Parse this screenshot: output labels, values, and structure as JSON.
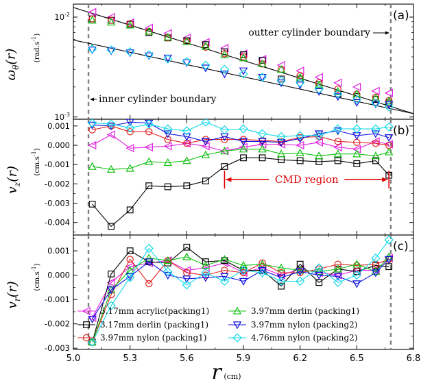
{
  "chart_data": {
    "type": "scatter",
    "xlim": [
      5.0,
      6.8
    ],
    "xticks": [
      "5.0",
      "5.3",
      "5.6",
      "5.9",
      "6.2",
      "6.5",
      "6.8"
    ],
    "x_label": "r",
    "x_unit": "(cm)",
    "x": [
      5.1,
      5.2,
      5.3,
      5.4,
      5.5,
      5.6,
      5.7,
      5.8,
      5.9,
      6.0,
      6.1,
      6.2,
      6.3,
      6.4,
      6.5,
      6.6,
      6.67
    ],
    "boundaries": {
      "inner": 5.08,
      "outer": 6.68,
      "inner_label": "inner cylinder boundary",
      "outer_label": "outter cylinder boundary"
    },
    "series_styles": [
      {
        "name": "3.17mm acrylic(packing1)",
        "color": "#e020e0",
        "marker": "triangle-left"
      },
      {
        "name": "3.17mm derlin (packing1)",
        "color": "#000000",
        "marker": "square"
      },
      {
        "name": "3.97mm nylon (packing1)",
        "color": "#e02020",
        "marker": "circle"
      },
      {
        "name": "3.97mm derlin (packing1)",
        "color": "#10c010",
        "marker": "triangle-up"
      },
      {
        "name": "3.97mm nylon (packing2)",
        "color": "#1010e0",
        "marker": "triangle-down"
      },
      {
        "name": "4.76mm nylon (packing2)",
        "color": "#10d8e8",
        "marker": "diamond"
      }
    ],
    "legend_rows": [
      [
        {
          "name": "3.17mm acrylic(packing1)",
          "color": "#e020e0",
          "marker": "triangle-left"
        },
        {
          "name": "3.97mm derlin (packing1)",
          "color": "#10c010",
          "marker": "triangle-up"
        }
      ],
      [
        {
          "name": "3.17mm derlin (packing1)",
          "color": "#000000",
          "marker": "square"
        },
        {
          "name": "3.97mm nylon (packing2)",
          "color": "#1010e0",
          "marker": "triangle-down"
        }
      ],
      [
        {
          "name": "3.97mm nylon (packing1)",
          "color": "#e02020",
          "marker": "circle"
        },
        {
          "name": "4.76mm nylon (packing2)",
          "color": "#10d8e8",
          "marker": "diamond"
        }
      ]
    ],
    "panels": [
      {
        "id": "a",
        "label": "(a)",
        "ylabel": "ω_θ(r)",
        "yunit": "(rad.s-1)",
        "scale": "log",
        "ylim": [
          0.00095,
          0.0135
        ],
        "yticks": [
          {
            "v": 0.01,
            "t": "10-2"
          },
          {
            "v": 0.001,
            "t": "10-3"
          }
        ],
        "connect": false,
        "fit_lines": [
          {
            "x": [
              5.0,
              6.8
            ],
            "y": [
              0.0125,
              0.00108
            ]
          },
          {
            "x": [
              5.0,
              6.8
            ],
            "y": [
              0.0059,
              0.00108
            ]
          }
        ],
        "series": [
          {
            "values": [
              0.0112,
              0.01,
              0.0088,
              0.0078,
              0.0069,
              0.0062,
              0.0056,
              0.0049,
              0.0043,
              0.0038,
              0.0033,
              0.0029,
              0.0025,
              0.0022,
              0.002,
              0.00182,
              0.00174
            ]
          },
          {
            "values": [
              0.0096,
              0.0093,
              0.0085,
              0.007,
              0.0062,
              0.0058,
              0.0053,
              0.0045,
              0.0042,
              0.0037,
              0.0024,
              0.0024,
              0.0021,
              0.0017,
              0.0016,
              0.0015,
              0.00138
            ]
          },
          {
            "values": [
              0.0096,
              0.0093,
              0.0086,
              0.0072,
              0.0062,
              0.0057,
              0.005,
              0.0043,
              0.004,
              0.0034,
              0.003,
              0.0026,
              0.0022,
              0.0019,
              0.0017,
              0.00158,
              0.00146
            ]
          },
          {
            "values": [
              0.0093,
              0.0089,
              0.0083,
              0.0072,
              0.0063,
              0.0057,
              0.0051,
              0.0042,
              0.0039,
              0.0034,
              0.003,
              0.0025,
              0.0021,
              0.0018,
              0.0017,
              0.00155,
              0.00144
            ]
          },
          {
            "values": [
              0.0047,
              0.0046,
              0.0044,
              0.0041,
              0.0039,
              0.0035,
              0.0031,
              0.0027,
              0.0029,
              0.0025,
              0.0022,
              0.0021,
              0.0018,
              0.0016,
              0.0014,
              0.00135,
              0.00133
            ]
          },
          {
            "values": [
              0.0048,
              0.0047,
              0.0045,
              0.0042,
              0.0038,
              0.0036,
              0.0033,
              0.003,
              0.0027,
              0.0025,
              0.0023,
              0.0022,
              0.0019,
              0.0017,
              0.0015,
              0.00138,
              0.00126
            ]
          }
        ]
      },
      {
        "id": "b",
        "label": "(b)",
        "ylabel": "v_z(r)",
        "yunit": "(cm.s-1)",
        "scale": "linear",
        "ylim": [
          -0.00465,
          0.00135
        ],
        "yticks": [
          {
            "v": 0.001,
            "t": "0.001"
          },
          {
            "v": 0.0,
            "t": "0.000"
          },
          {
            "v": -0.001,
            "t": "-0.001"
          },
          {
            "v": -0.002,
            "t": "-0.002"
          },
          {
            "v": -0.003,
            "t": "-0.003"
          },
          {
            "v": -0.004,
            "t": "-0.004"
          }
        ],
        "connect": true,
        "region": {
          "label": "CMD region",
          "from": 5.8,
          "to": 6.67,
          "y": -0.00178
        },
        "series": [
          {
            "values": [
              0.0,
              0.00055,
              -0.00015,
              -0.0001,
              -5e-05,
              0.0001,
              -5e-05,
              -0.0003,
              -0.0001,
              5e-05,
              5e-05,
              0.0,
              0.00015,
              -0.0001,
              -0.0002,
              0.0002,
              5e-05
            ]
          },
          {
            "values": [
              -0.00305,
              -0.0042,
              -0.00335,
              -0.0021,
              -0.00215,
              -0.0021,
              -0.00185,
              -0.0011,
              -0.00065,
              -0.00065,
              -0.00075,
              -0.0008,
              -0.00085,
              -0.0008,
              -0.00095,
              -0.0008,
              -0.00155
            ]
          },
          {
            "values": [
              0.0008,
              0.001,
              0.0007,
              0.0007,
              0.0003,
              0.0001,
              0.0003,
              0.0003,
              0.0003,
              0.00025,
              0.0002,
              0.0004,
              0.00045,
              0.0002,
              0.00015,
              0.0001,
              0.0
            ]
          },
          {
            "values": [
              -0.0011,
              -0.00125,
              -0.0012,
              -0.00085,
              -0.0009,
              -0.0008,
              -0.0005,
              -0.0003,
              -0.0002,
              -0.0002,
              -0.00045,
              -0.0004,
              -0.00055,
              -0.00045,
              -0.00045,
              -0.00055,
              -0.00035
            ]
          },
          {
            "values": [
              0.00105,
              0.001,
              0.0012,
              0.00115,
              0.0006,
              0.00045,
              0.0002,
              0.00045,
              0.0002,
              0.0002,
              0.00015,
              0.00035,
              0.0006,
              0.00075,
              0.0005,
              0.0006,
              0.0004
            ]
          },
          {
            "values": [
              0.00115,
              0.0011,
              0.0009,
              0.0011,
              0.00085,
              0.00075,
              0.0012,
              0.0008,
              0.00085,
              0.0006,
              0.00045,
              0.0005,
              0.0005,
              0.00085,
              0.00085,
              0.00085,
              0.00095
            ]
          }
        ]
      },
      {
        "id": "c",
        "label": "(c)",
        "ylabel": "v_r(r)",
        "yunit": "(cm.s-1)",
        "scale": "linear",
        "ylim": [
          -0.00305,
          0.00165
        ],
        "yticks": [
          {
            "v": 0.001,
            "t": "0.001"
          },
          {
            "v": 0.0,
            "t": "0.000"
          },
          {
            "v": -0.001,
            "t": "-0.001"
          },
          {
            "v": -0.002,
            "t": "-0.002"
          },
          {
            "v": -0.003,
            "t": "-0.003"
          }
        ],
        "connect": true,
        "series": [
          {
            "values": [
              -0.00175,
              -0.0003,
              0.00035,
              0.0005,
              0.0006,
              0.0002,
              0.0003,
              0.0005,
              0.0001,
              0.0003,
              0.0,
              0.00025,
              0.0001,
              0.0,
              0.0002,
              0.0002,
              0.0007
            ]
          },
          {
            "values": [
              -0.00275,
              5e-05,
              0.001,
              0.00055,
              0.0005,
              0.00115,
              0.00055,
              0.0006,
              0.0002,
              0.0002,
              -0.00045,
              0.00045,
              -0.0003,
              0.00025,
              0.00015,
              0.0004,
              0.00035
            ]
          },
          {
            "values": [
              -0.00275,
              -0.0008,
              0.00065,
              -0.00035,
              0.0006,
              0.0001,
              0.0,
              0.0002,
              0.0001,
              0.0005,
              0.0001,
              0.0001,
              0.00025,
              0.00045,
              0.0004,
              0.00045,
              0.00065
            ]
          },
          {
            "values": [
              -0.00275,
              -0.0006,
              0.0002,
              0.0007,
              0.0006,
              0.00075,
              0.0004,
              0.00065,
              0.0004,
              0.00045,
              0.0003,
              0.0002,
              0.00015,
              0.00025,
              0.00045,
              0.00015,
              0.00075
            ]
          },
          {
            "values": [
              -0.0018,
              -0.0006,
              -5e-05,
              0.00055,
              0.0,
              -0.00015,
              -0.0001,
              -5e-05,
              -0.00025,
              0.0002,
              -0.0001,
              0.00015,
              0.0,
              -5e-05,
              -0.00035,
              0.0001,
              0.00065
            ]
          },
          {
            "values": [
              -0.00275,
              -0.00125,
              -0.0001,
              0.0011,
              0.00015,
              -0.0004,
              0.0001,
              -0.00025,
              0.0002,
              0.0001,
              -0.00025,
              -0.00025,
              0.0003,
              -0.0003,
              0.0,
              0.0007,
              0.00145
            ]
          }
        ]
      }
    ]
  }
}
